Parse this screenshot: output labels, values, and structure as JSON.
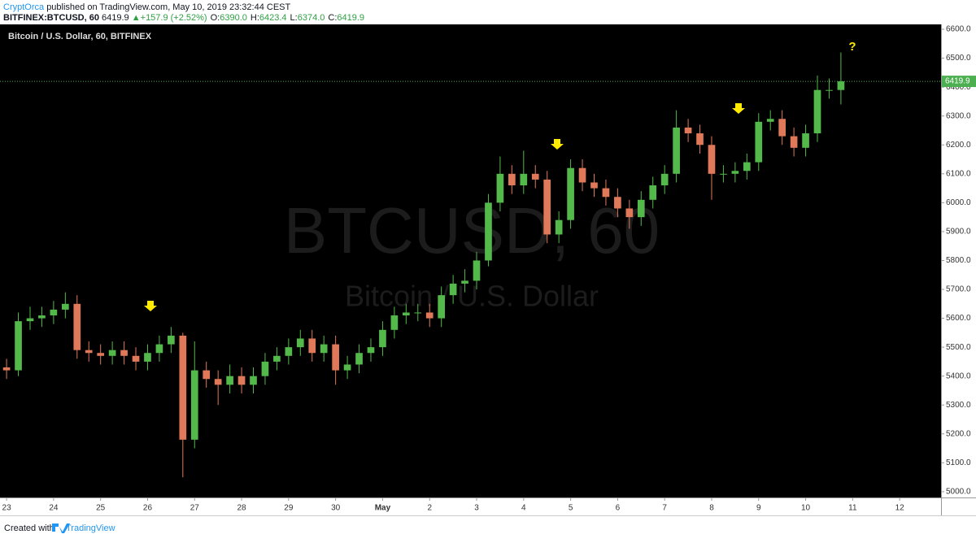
{
  "header": {
    "author": "CryptOrca",
    "published": "published on TradingView.com, May 10, 2019 23:32:44 CEST",
    "symbol": "BITFINEX:BTCUSD, 60",
    "price": "6419.9",
    "arrow": "▲",
    "change": "+157.9 (+2.52%)",
    "ohlc": [
      {
        "key": "O:",
        "val": "6390.0"
      },
      {
        "key": "H:",
        "val": "6423.4"
      },
      {
        "key": "L:",
        "val": "6374.0"
      },
      {
        "key": "C:",
        "val": "6419.9"
      }
    ]
  },
  "chart_data": {
    "type": "candlestick",
    "title": "Bitcoin / U.S. Dollar, 60, BITFINEX",
    "watermark": [
      "BTCUSD, 60",
      "Bitcoin / U.S. Dollar"
    ],
    "annotation": "?",
    "up_color": "#53b94a",
    "down_color": "#e0795a",
    "price_line_color": "#4caf50",
    "x": [
      0,
      0.25,
      0.5,
      0.75,
      1,
      1.25,
      1.5,
      1.75,
      2,
      2.25,
      2.5,
      2.75,
      3,
      3.25,
      3.5,
      3.75,
      4,
      4.25,
      4.5,
      4.75,
      5,
      5.25,
      5.5,
      5.75,
      6,
      6.25,
      6.5,
      6.75,
      7,
      7.25,
      7.5,
      7.75,
      8,
      8.25,
      8.5,
      8.75,
      9,
      9.25,
      9.5,
      9.75,
      10,
      10.25,
      10.5,
      10.75,
      11,
      11.25,
      11.5,
      11.75,
      12,
      12.25,
      12.5,
      12.75,
      13,
      13.25,
      13.5,
      13.75,
      14,
      14.25,
      14.5,
      14.75,
      15,
      15.25,
      15.5,
      15.75,
      16,
      16.25,
      16.5,
      16.75,
      17,
      17.25,
      17.5,
      17.75
    ],
    "open": [
      5430,
      5420,
      5590,
      5600,
      5610,
      5630,
      5650,
      5490,
      5480,
      5470,
      5490,
      5470,
      5450,
      5480,
      5510,
      5540,
      5180,
      5420,
      5390,
      5370,
      5400,
      5370,
      5400,
      5450,
      5470,
      5500,
      5530,
      5480,
      5510,
      5420,
      5440,
      5480,
      5500,
      5560,
      5610,
      5620,
      5620,
      5600,
      5680,
      5720,
      5730,
      5800,
      6000,
      6100,
      6060,
      6100,
      6080,
      5890,
      5940,
      6120,
      6070,
      6050,
      6020,
      5980,
      5950,
      6010,
      6060,
      6100,
      6260,
      6240,
      6200,
      6100,
      6100,
      6110,
      6140,
      6280,
      6290,
      6230,
      6190,
      6240,
      6390,
      6390
    ],
    "high": [
      5460,
      5620,
      5640,
      5640,
      5660,
      5690,
      5680,
      5520,
      5510,
      5520,
      5520,
      5500,
      5510,
      5540,
      5570,
      5550,
      5520,
      5450,
      5420,
      5440,
      5430,
      5430,
      5480,
      5500,
      5530,
      5560,
      5560,
      5540,
      5540,
      5470,
      5510,
      5530,
      5590,
      5640,
      5650,
      5650,
      5650,
      5710,
      5750,
      5770,
      5830,
      6030,
      6160,
      6130,
      6180,
      6130,
      6110,
      5970,
      6150,
      6150,
      6100,
      6080,
      6050,
      6010,
      6040,
      6090,
      6130,
      6320,
      6290,
      6270,
      6230,
      6130,
      6140,
      6170,
      6310,
      6320,
      6320,
      6260,
      6270,
      6440,
      6430,
      6520
    ],
    "low": [
      5390,
      5400,
      5560,
      5570,
      5580,
      5600,
      5460,
      5450,
      5440,
      5440,
      5440,
      5420,
      5420,
      5450,
      5480,
      5050,
      5150,
      5360,
      5300,
      5340,
      5340,
      5340,
      5370,
      5420,
      5440,
      5470,
      5450,
      5450,
      5370,
      5390,
      5410,
      5450,
      5470,
      5530,
      5580,
      5590,
      5570,
      5570,
      5650,
      5690,
      5700,
      5780,
      5970,
      6030,
      6030,
      6050,
      5860,
      5860,
      5910,
      6040,
      6020,
      5990,
      5950,
      5910,
      5920,
      5980,
      6030,
      6070,
      6210,
      6170,
      6010,
      6070,
      6070,
      6080,
      6110,
      6250,
      6200,
      6160,
      6160,
      6210,
      6360,
      6340
    ],
    "close": [
      5420,
      5590,
      5600,
      5610,
      5630,
      5650,
      5490,
      5480,
      5470,
      5490,
      5470,
      5450,
      5480,
      5510,
      5540,
      5180,
      5420,
      5390,
      5370,
      5400,
      5370,
      5400,
      5450,
      5470,
      5500,
      5530,
      5480,
      5510,
      5420,
      5440,
      5480,
      5500,
      5560,
      5610,
      5620,
      5620,
      5600,
      5680,
      5720,
      5730,
      5800,
      6000,
      6100,
      6060,
      6100,
      6080,
      5890,
      5940,
      6120,
      6070,
      6050,
      6020,
      5980,
      5950,
      6010,
      6060,
      6100,
      6260,
      6240,
      6200,
      6100,
      6100,
      6110,
      6140,
      6280,
      6290,
      6230,
      6190,
      6240,
      6390,
      6390,
      6419.9
    ],
    "last_price": 6419.9,
    "xlim": [
      -0.14,
      19.88
    ],
    "xticks": [
      {
        "value": 0,
        "label": "23"
      },
      {
        "value": 1,
        "label": "24"
      },
      {
        "value": 2,
        "label": "25"
      },
      {
        "value": 3,
        "label": "26"
      },
      {
        "value": 4,
        "label": "27"
      },
      {
        "value": 5,
        "label": "28"
      },
      {
        "value": 6,
        "label": "29"
      },
      {
        "value": 7,
        "label": "30"
      },
      {
        "value": 8,
        "label": "May"
      },
      {
        "value": 9,
        "label": "2"
      },
      {
        "value": 10,
        "label": "3"
      },
      {
        "value": 11,
        "label": "4"
      },
      {
        "value": 12,
        "label": "5"
      },
      {
        "value": 13,
        "label": "6"
      },
      {
        "value": 14,
        "label": "7"
      },
      {
        "value": 15,
        "label": "8"
      },
      {
        "value": 16,
        "label": "9"
      },
      {
        "value": 17,
        "label": "10"
      },
      {
        "value": 18,
        "label": "11"
      },
      {
        "value": 19,
        "label": "12"
      }
    ],
    "ylim": [
      4980,
      6617
    ],
    "yticks": [
      {
        "value": 5000,
        "label": "5000.0"
      },
      {
        "value": 5100,
        "label": "5100.0"
      },
      {
        "value": 5200,
        "label": "5200.0"
      },
      {
        "value": 5300,
        "label": "5300.0"
      },
      {
        "value": 5400,
        "label": "5400.0"
      },
      {
        "value": 5500,
        "label": "5500.0"
      },
      {
        "value": 5600,
        "label": "5600.0"
      },
      {
        "value": 5700,
        "label": "5700.0"
      },
      {
        "value": 5800,
        "label": "5800.0"
      },
      {
        "value": 5900,
        "label": "5900.0"
      },
      {
        "value": 6000,
        "label": "6000.0"
      },
      {
        "value": 6100,
        "label": "6100.0"
      },
      {
        "value": 6200,
        "label": "6200.0"
      },
      {
        "value": 6300,
        "label": "6300.0"
      },
      {
        "value": 6400,
        "label": "6400.0"
      },
      {
        "value": 6500,
        "label": "6500.0"
      },
      {
        "value": 6600,
        "label": "6600.0"
      }
    ],
    "grid": false
  },
  "footer": {
    "created": "Created with",
    "brand": "TradingView"
  }
}
